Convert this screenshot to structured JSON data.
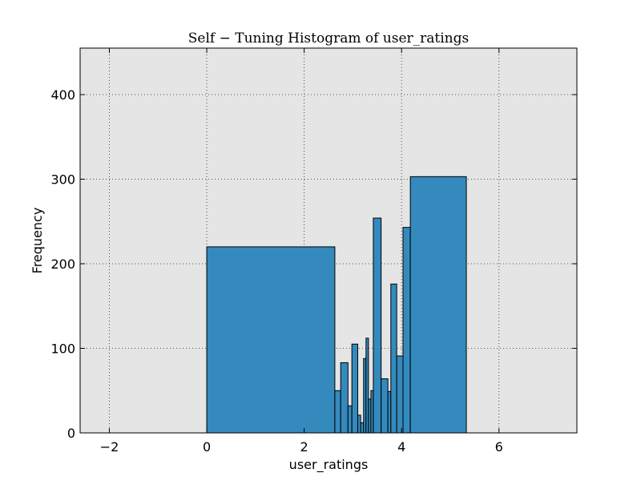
{
  "chart_data": {
    "type": "bar",
    "title": "Self − Tuning Histogram of user_ratings",
    "xlabel": "user_ratings",
    "ylabel": "Frequency",
    "xlim": [
      -2.6,
      7.6
    ],
    "ylim": [
      0,
      455
    ],
    "xticks": [
      -2,
      0,
      2,
      4,
      6
    ],
    "xtick_labels": [
      "−2",
      "0",
      "2",
      "4",
      "6"
    ],
    "yticks": [
      0,
      100,
      200,
      300,
      400
    ],
    "ytick_labels": [
      "0",
      "100",
      "200",
      "300",
      "400"
    ],
    "grid": true,
    "bins": [
      {
        "x0": 0.0,
        "x1": 2.63,
        "count": 220
      },
      {
        "x0": 2.63,
        "x1": 2.75,
        "count": 50
      },
      {
        "x0": 2.75,
        "x1": 2.9,
        "count": 83
      },
      {
        "x0": 2.9,
        "x1": 2.98,
        "count": 32
      },
      {
        "x0": 2.98,
        "x1": 3.1,
        "count": 105
      },
      {
        "x0": 3.1,
        "x1": 3.16,
        "count": 21
      },
      {
        "x0": 3.16,
        "x1": 3.22,
        "count": 12
      },
      {
        "x0": 3.22,
        "x1": 3.27,
        "count": 88
      },
      {
        "x0": 3.27,
        "x1": 3.32,
        "count": 112
      },
      {
        "x0": 3.32,
        "x1": 3.37,
        "count": 40
      },
      {
        "x0": 3.37,
        "x1": 3.42,
        "count": 50
      },
      {
        "x0": 3.42,
        "x1": 3.58,
        "count": 254
      },
      {
        "x0": 3.58,
        "x1": 3.72,
        "count": 64
      },
      {
        "x0": 3.72,
        "x1": 3.78,
        "count": 49
      },
      {
        "x0": 3.78,
        "x1": 3.9,
        "count": 176
      },
      {
        "x0": 3.9,
        "x1": 4.03,
        "count": 91
      },
      {
        "x0": 4.03,
        "x1": 4.18,
        "count": 243
      },
      {
        "x0": 4.18,
        "x1": 5.33,
        "count": 303
      }
    ],
    "bar_color": "#348abd",
    "edge_color": "#000000",
    "plot_background": "#e5e5e5"
  }
}
